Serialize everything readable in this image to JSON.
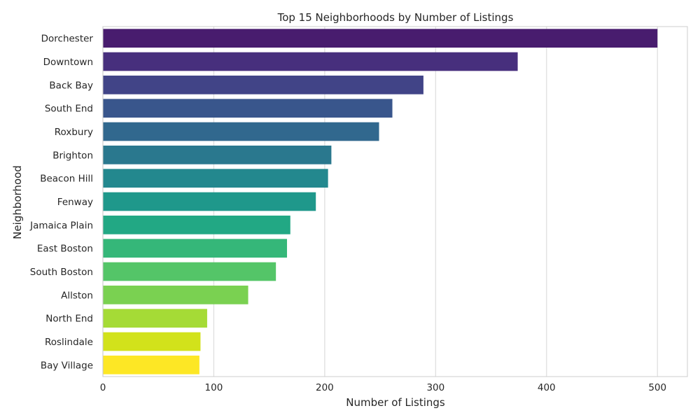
{
  "chart_data": {
    "type": "bar",
    "orientation": "horizontal",
    "title": "Top 15 Neighborhoods by Number of Listings",
    "xlabel": "Number of Listings",
    "ylabel": "Neighborhood",
    "xlim": [
      0,
      527
    ],
    "xticks": [
      0,
      100,
      200,
      300,
      400,
      500
    ],
    "grid": true,
    "categories": [
      "Dorchester",
      "Downtown",
      "Back Bay",
      "South End",
      "Roxbury",
      "Brighton",
      "Beacon Hill",
      "Fenway",
      "Jamaica Plain",
      "East Boston",
      "South Boston",
      "Allston",
      "North End",
      "Roslindale",
      "Bay Village"
    ],
    "values": [
      500,
      374,
      289,
      261,
      249,
      206,
      203,
      192,
      169,
      166,
      156,
      131,
      94,
      88,
      87
    ],
    "colors": [
      "#481c6e",
      "#472f7d",
      "#414487",
      "#39568c",
      "#31688e",
      "#2a788e",
      "#23888e",
      "#1f988b",
      "#22a884",
      "#35b779",
      "#54c568",
      "#7ad151",
      "#a5db36",
      "#d2e21b",
      "#fde725"
    ]
  }
}
